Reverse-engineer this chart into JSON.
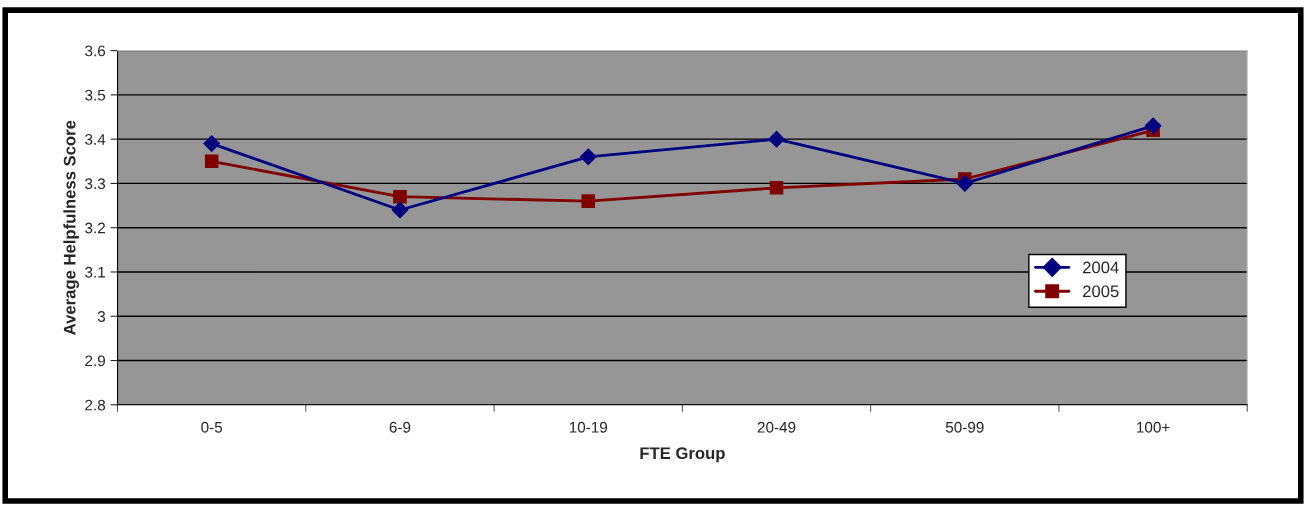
{
  "chart_data": {
    "type": "line",
    "xlabel": "FTE Group",
    "ylabel": "Average Helpfulness Score",
    "categories": [
      "0-5",
      "6-9",
      "10-19",
      "20-49",
      "50-99",
      "100+"
    ],
    "series": [
      {
        "name": "2004",
        "color": "#000080",
        "marker": "diamond",
        "values": [
          3.39,
          3.24,
          3.36,
          3.4,
          3.3,
          3.43
        ]
      },
      {
        "name": "2005",
        "color": "#800000",
        "marker": "square",
        "values": [
          3.35,
          3.27,
          3.26,
          3.29,
          3.31,
          3.42
        ]
      }
    ],
    "ylim": [
      2.8,
      3.6
    ],
    "yticks": [
      2.8,
      2.9,
      3,
      3.1,
      3.2,
      3.3,
      3.4,
      3.5,
      3.6
    ],
    "grid": "y",
    "legend": "right"
  }
}
